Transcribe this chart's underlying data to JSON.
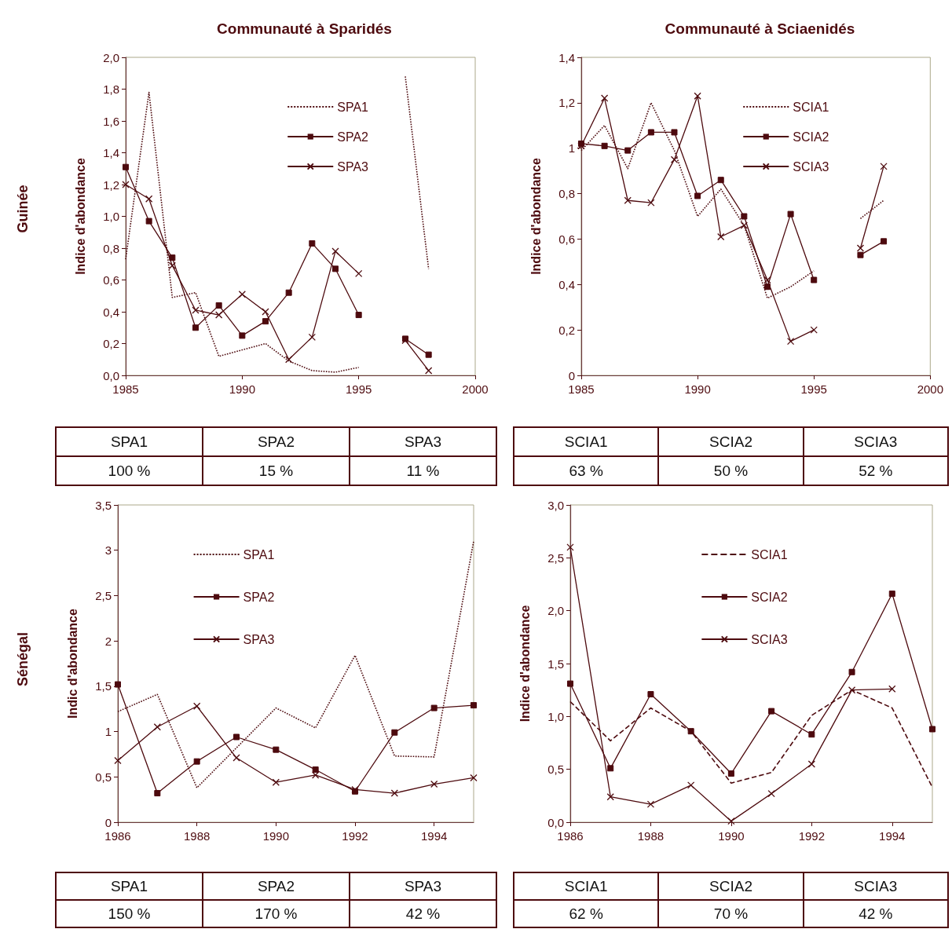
{
  "chart_data": [
    {
      "type": "line",
      "title": "Communauté à Sparidés",
      "ylabel": "Indice d'abondance",
      "annotations": [
        "Guinée"
      ],
      "x": [
        1985,
        1986,
        1987,
        1988,
        1989,
        1990,
        1991,
        1992,
        1993,
        1994,
        1995,
        1996,
        1997,
        1998
      ],
      "xlim": [
        1985,
        2000
      ],
      "xticks": [
        1985,
        1990,
        1995,
        2000
      ],
      "ylim": [
        0,
        2
      ],
      "yticks": [
        {
          "value": 0,
          "label": "0,0"
        },
        {
          "value": 0.2,
          "label": "0,2"
        },
        {
          "value": 0.4,
          "label": "0,4"
        },
        {
          "value": 0.6,
          "label": "0,6"
        },
        {
          "value": 0.8,
          "label": "0,8"
        },
        {
          "value": 1,
          "label": "1,0"
        },
        {
          "value": 1.2,
          "label": "1,2"
        },
        {
          "value": 1.4,
          "label": "1,4"
        },
        {
          "value": 1.6,
          "label": "1,6"
        },
        {
          "value": 1.8,
          "label": "1,8"
        },
        {
          "value": 2,
          "label": "2,0"
        }
      ],
      "grid": false,
      "legend": "top right",
      "series": [
        {
          "name": "SPA1",
          "color": "#4d0a0e",
          "marker": "none",
          "line_style": "dotted",
          "values": [
            0.73,
            1.78,
            0.49,
            0.52,
            0.12,
            0.16,
            0.2,
            0.09,
            0.03,
            0.02,
            0.05,
            null,
            1.88,
            0.67
          ]
        },
        {
          "name": "SPA2",
          "color": "#4d0a0e",
          "marker": "square",
          "line_style": "solid",
          "values": [
            1.31,
            0.97,
            0.74,
            0.3,
            0.44,
            0.25,
            0.34,
            0.52,
            0.83,
            0.67,
            0.38,
            null,
            0.23,
            0.13
          ]
        },
        {
          "name": "SPA3",
          "color": "#4d0a0e",
          "marker": "cross",
          "line_style": "solid",
          "values": [
            1.2,
            1.11,
            0.69,
            0.41,
            0.38,
            0.51,
            0.4,
            0.1,
            0.24,
            0.78,
            0.64,
            null,
            0.22,
            0.03
          ]
        }
      ]
    },
    {
      "type": "line",
      "title": "Communauté à Sciaenidés",
      "ylabel": "Indice d'abondance",
      "x": [
        1985,
        1986,
        1987,
        1988,
        1989,
        1990,
        1991,
        1992,
        1993,
        1994,
        1995,
        1996,
        1997,
        1998
      ],
      "xlim": [
        1985,
        2000
      ],
      "xticks": [
        1985,
        1990,
        1995,
        2000
      ],
      "ylim": [
        0,
        1.4
      ],
      "yticks": [
        0,
        {
          "value": 0.2,
          "label": "0,2"
        },
        {
          "value": 0.4,
          "label": "0,4"
        },
        {
          "value": 0.6,
          "label": "0,6"
        },
        {
          "value": 0.8,
          "label": "0,8"
        },
        1,
        {
          "value": 1.2,
          "label": "1,2"
        },
        {
          "value": 1.4,
          "label": "1,4"
        }
      ],
      "grid": false,
      "legend": "top right",
      "series": [
        {
          "name": "SCIA1",
          "color": "#4d0a0e",
          "marker": "none",
          "line_style": "dotted",
          "values": [
            0.99,
            1.1,
            0.91,
            1.2,
            0.99,
            0.7,
            0.82,
            0.66,
            0.34,
            0.39,
            0.46,
            null,
            0.69,
            0.77
          ]
        },
        {
          "name": "SCIA2",
          "color": "#4d0a0e",
          "marker": "square",
          "line_style": "solid",
          "values": [
            1.02,
            1.01,
            0.99,
            1.07,
            1.07,
            0.79,
            0.86,
            0.7,
            0.39,
            0.71,
            0.42,
            null,
            0.53,
            0.59
          ]
        },
        {
          "name": "SCIA3",
          "color": "#4d0a0e",
          "marker": "cross",
          "line_style": "solid",
          "values": [
            1.01,
            1.22,
            0.77,
            0.76,
            0.95,
            1.23,
            0.61,
            0.66,
            0.42,
            0.15,
            0.2,
            null,
            0.56,
            0.92
          ]
        }
      ]
    },
    {
      "type": "other",
      "categories": [
        "SPA1",
        "SPA2",
        "SPA3"
      ],
      "values": [
        100,
        15,
        11
      ],
      "value_labels": [
        "100 %",
        "15 %",
        "11 %"
      ]
    },
    {
      "type": "other",
      "categories": [
        "SCIA1",
        "SCIA2",
        "SCIA3"
      ],
      "values": [
        63,
        50,
        52
      ],
      "value_labels": [
        "63 %",
        "50 %",
        "52 %"
      ]
    },
    {
      "type": "line",
      "ylabel": "Indic d'abondance",
      "annotations": [
        "Sénégal"
      ],
      "x": [
        1986,
        1987,
        1988,
        1989,
        1990,
        1991,
        1992,
        1993,
        1994,
        1995
      ],
      "xlim": [
        1986,
        1995
      ],
      "xticks": [
        1986,
        1988,
        1990,
        1992,
        1994
      ],
      "ylim": [
        0,
        3.5
      ],
      "yticks": [
        0,
        {
          "value": 0.5,
          "label": "0,5"
        },
        1,
        {
          "value": 1.5,
          "label": "1,5"
        },
        2,
        {
          "value": 2.5,
          "label": "2,5"
        },
        3,
        {
          "value": 3.5,
          "label": "3,5"
        }
      ],
      "grid": false,
      "legend": "top left",
      "series": [
        {
          "name": "SPA1",
          "color": "#4d0a0e",
          "marker": "none",
          "line_style": "dotted",
          "values": [
            1.22,
            1.41,
            0.38,
            0.82,
            1.26,
            1.04,
            1.84,
            0.73,
            0.72,
            3.1
          ]
        },
        {
          "name": "SPA2",
          "color": "#4d0a0e",
          "marker": "square",
          "line_style": "solid",
          "values": [
            1.52,
            0.32,
            0.67,
            0.94,
            0.8,
            0.58,
            0.34,
            0.99,
            1.26,
            1.29
          ]
        },
        {
          "name": "SPA3",
          "color": "#4d0a0e",
          "marker": "cross",
          "line_style": "solid",
          "values": [
            0.68,
            1.05,
            1.28,
            0.71,
            0.44,
            0.52,
            0.36,
            0.32,
            0.42,
            0.49
          ]
        }
      ]
    },
    {
      "type": "line",
      "ylabel": "Indice d'abondance",
      "x": [
        1986,
        1987,
        1988,
        1989,
        1990,
        1991,
        1992,
        1993,
        1994,
        1995
      ],
      "xlim": [
        1986,
        1995
      ],
      "xticks": [
        1986,
        1988,
        1990,
        1992,
        1994
      ],
      "ylim": [
        0,
        3
      ],
      "yticks": [
        {
          "value": 0,
          "label": "0,0"
        },
        {
          "value": 0.5,
          "label": "0,5"
        },
        {
          "value": 1,
          "label": "1,0"
        },
        {
          "value": 1.5,
          "label": "1,5"
        },
        {
          "value": 2,
          "label": "2,0"
        },
        {
          "value": 2.5,
          "label": "2,5"
        },
        {
          "value": 3,
          "label": "3,0"
        }
      ],
      "grid": false,
      "legend": "top",
      "series": [
        {
          "name": "SCIA1",
          "color": "#4d0a0e",
          "marker": "none",
          "line_style": "dashed",
          "values": [
            1.14,
            0.77,
            1.08,
            0.86,
            0.37,
            0.47,
            1.01,
            1.25,
            1.08,
            0.33
          ]
        },
        {
          "name": "SCIA2",
          "color": "#4d0a0e",
          "marker": "square",
          "line_style": "solid",
          "values": [
            1.31,
            0.51,
            1.21,
            0.86,
            0.46,
            1.05,
            0.83,
            1.42,
            2.16,
            0.88
          ]
        },
        {
          "name": "SCIA3",
          "color": "#4d0a0e",
          "marker": "cross",
          "line_style": "solid",
          "values": [
            2.6,
            0.24,
            0.17,
            0.35,
            0.01,
            0.27,
            0.55,
            1.25,
            1.26,
            null
          ]
        }
      ]
    },
    {
      "type": "other",
      "categories": [
        "SPA1",
        "SPA2",
        "SPA3"
      ],
      "values": [
        150,
        170,
        42
      ],
      "value_labels": [
        "150 %",
        "170 %",
        "42 %"
      ]
    },
    {
      "type": "other",
      "categories": [
        "SCIA1",
        "SCIA2",
        "SCIA3"
      ],
      "values": [
        62,
        70,
        42
      ],
      "value_labels": [
        "62 %",
        "70 %",
        "42 %"
      ]
    }
  ]
}
